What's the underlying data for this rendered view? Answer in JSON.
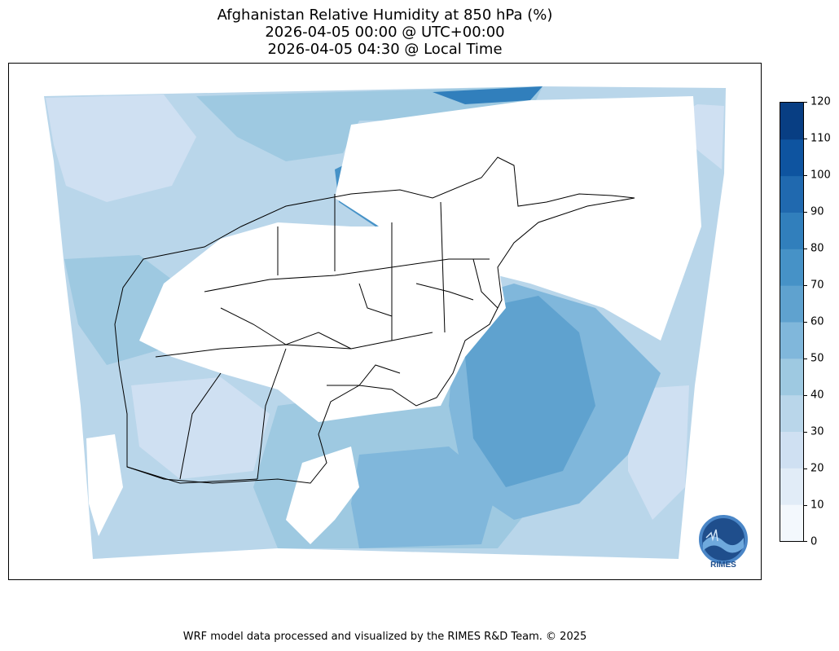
{
  "title": {
    "line1": "Afghanistan Relative Humidity at 850 hPa (%)",
    "line2": "2026-04-05 00:00 @ UTC+00:00",
    "line3": "2026-04-05 04:30 @ Local Time"
  },
  "colorbar": {
    "ticks": [
      "0",
      "10",
      "20",
      "30",
      "40",
      "50",
      "60",
      "70",
      "80",
      "90",
      "100",
      "110",
      "120"
    ],
    "colors": [
      "#f3f8fd",
      "#e1ecf7",
      "#cfe0f2",
      "#b9d6ea",
      "#9ec9e1",
      "#80b7db",
      "#5fa2cf",
      "#4692c7",
      "#317fbc",
      "#2069af",
      "#0e54a0",
      "#083e83"
    ]
  },
  "footer": "WRF model data processed and visualized by the RIMES R&D Team. © 2025",
  "logo": {
    "text": "RIMES",
    "icon": "rimes-globe-logo"
  }
}
